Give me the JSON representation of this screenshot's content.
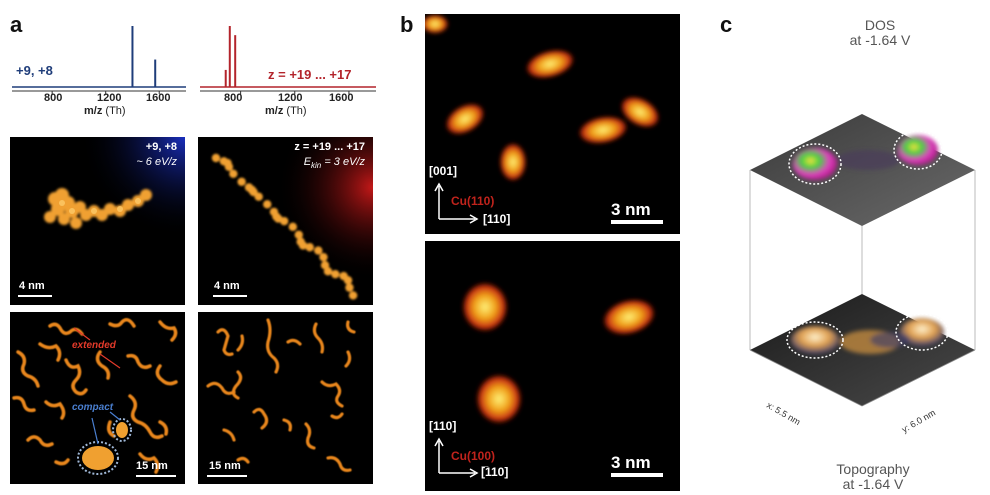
{
  "panels": {
    "a": {
      "letter": "a",
      "spectrum_left": {
        "charge_label": "+9, +8",
        "color": "#1f3d7a",
        "ticks": [
          "800",
          "1200",
          "1600"
        ],
        "xlabel": "m/z",
        "xlabel_unit": "(Th)"
      },
      "spectrum_right": {
        "charge_label": "z = +19 ... +17",
        "color": "#b3242b",
        "ticks": [
          "800",
          "1200",
          "1600"
        ],
        "xlabel": "m/z",
        "xlabel_unit": "(Th)"
      },
      "img1": {
        "charge": "+9, +8",
        "energy": "~ 6 eV/z",
        "scale": "4 nm"
      },
      "img2": {
        "charge": "z = +19 ... +17",
        "energy_prefix": "E",
        "energy_sub": "kin",
        "energy_suffix": " = 3 eV/z",
        "scale": "4 nm"
      },
      "img3": {
        "label_extended": "extended",
        "label_compact": "compact",
        "scale": "15 nm"
      },
      "img4": {
        "scale": "15 nm"
      }
    },
    "b": {
      "letter": "b",
      "top": {
        "dir_up": "[001]",
        "dir_right": "[110]",
        "substrate": "Cu(110)",
        "scale": "3 nm"
      },
      "bottom": {
        "dir_up": "[110]",
        "dir_right": "[̅110]",
        "substrate": "Cu(100)",
        "scale": "3 nm"
      }
    },
    "c": {
      "letter": "c",
      "top_title_1": "DOS",
      "top_title_2": "at -1.64 V",
      "bottom_title_1": "Topography",
      "bottom_title_2": "at -1.64 V",
      "axis_x": "x: 5.5 nm",
      "axis_y": "y: 6.0 nm"
    }
  },
  "chart_data": [
    {
      "type": "bar",
      "title": "",
      "xlabel": "m/z (Th)",
      "ylabel": "",
      "xlim": [
        500,
        1800
      ],
      "x": [
        1400,
        1570
      ],
      "values": [
        1.0,
        0.45
      ],
      "series_label": "+9, +8"
    },
    {
      "type": "bar",
      "title": "",
      "xlabel": "m/z (Th)",
      "ylabel": "",
      "xlim": [
        500,
        1800
      ],
      "x": [
        690,
        720,
        760
      ],
      "values": [
        0.28,
        1.0,
        0.85
      ],
      "series_label": "z = +19 ... +17"
    }
  ]
}
